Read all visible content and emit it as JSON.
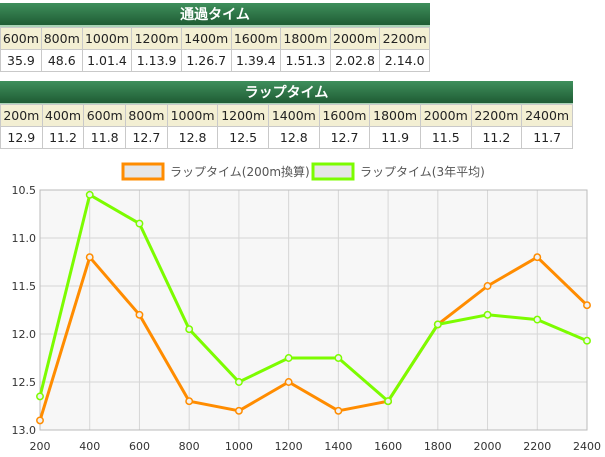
{
  "passing": {
    "title": "通過タイム",
    "labels": [
      "600m",
      "800m",
      "1000m",
      "1200m",
      "1400m",
      "1600m",
      "1800m",
      "2000m",
      "2200m"
    ],
    "values": [
      "35.9",
      "48.6",
      "1.01.4",
      "1.13.9",
      "1.26.7",
      "1.39.4",
      "1.51.3",
      "2.02.8",
      "2.14.0"
    ]
  },
  "lap": {
    "title": "ラップタイム",
    "labels": [
      "200m",
      "400m",
      "600m",
      "800m",
      "1000m",
      "1200m",
      "1400m",
      "1600m",
      "1800m",
      "2000m",
      "2200m",
      "2400m"
    ],
    "values": [
      "12.9",
      "11.2",
      "11.8",
      "12.7",
      "12.8",
      "12.5",
      "12.8",
      "12.7",
      "11.9",
      "11.5",
      "11.2",
      "11.7"
    ]
  },
  "chart_data": {
    "type": "line",
    "x": [
      200,
      400,
      600,
      800,
      1000,
      1200,
      1400,
      1600,
      1800,
      2000,
      2200,
      2400
    ],
    "yticks": [
      "10.5",
      "11.0",
      "11.5",
      "12.0",
      "12.5",
      "13.0"
    ],
    "ylim": [
      10.5,
      13.0
    ],
    "y_inverted": true,
    "grid": true,
    "legend_position": "top",
    "series": [
      {
        "name": "ラップタイム(200m換算)",
        "color": "#ff8c00",
        "values": [
          12.9,
          11.2,
          11.8,
          12.7,
          12.8,
          12.5,
          12.8,
          12.7,
          11.9,
          11.5,
          11.2,
          11.7
        ]
      },
      {
        "name": "ラップタイム(3年平均)",
        "color": "#7cfc00",
        "values": [
          12.65,
          10.55,
          10.85,
          11.95,
          12.5,
          12.25,
          12.25,
          12.7,
          11.9,
          11.8,
          11.85,
          12.07
        ]
      }
    ]
  }
}
